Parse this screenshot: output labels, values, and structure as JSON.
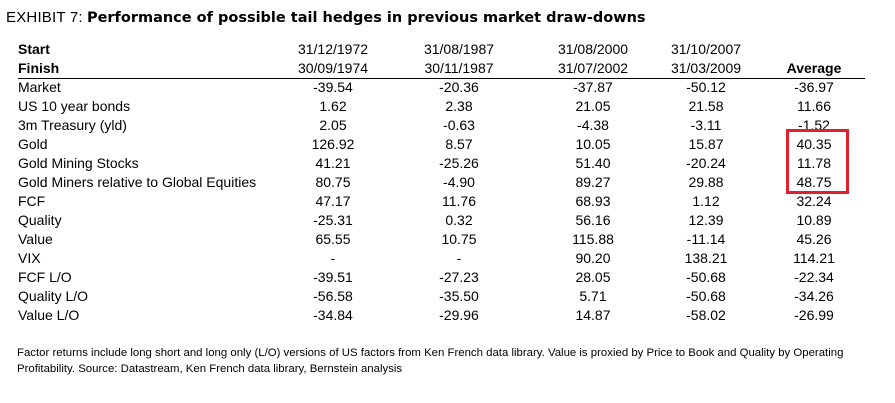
{
  "exhibit": {
    "label": "EXHIBIT 7:",
    "title": "Performance of possible tail hedges in previous market draw-downs"
  },
  "columns": [
    {
      "start": "31/12/1972",
      "finish": "30/09/1974"
    },
    {
      "start": "31/08/1987",
      "finish": "30/11/1987"
    },
    {
      "start": "31/08/2000",
      "finish": "31/07/2002"
    },
    {
      "start": "31/10/2007",
      "finish": "31/03/2009"
    }
  ],
  "header": {
    "start_label": "Start",
    "finish_label": "Finish",
    "average_label": "Average"
  },
  "rows": [
    {
      "label": "Market",
      "values": [
        "-39.54",
        "-20.36",
        "-37.87",
        "-50.12",
        "-36.97"
      ]
    },
    {
      "label": "US 10 year bonds",
      "values": [
        "1.62",
        "2.38",
        "21.05",
        "21.58",
        "11.66"
      ]
    },
    {
      "label": "3m Treasury (yld)",
      "values": [
        "2.05",
        "-0.63",
        "-4.38",
        "-3.11",
        "-1.52"
      ]
    },
    {
      "label": "Gold",
      "values": [
        "126.92",
        "8.57",
        "10.05",
        "15.87",
        "40.35"
      ]
    },
    {
      "label": "Gold Mining Stocks",
      "values": [
        "41.21",
        "-25.26",
        "51.40",
        "-20.24",
        "11.78"
      ]
    },
    {
      "label": "Gold Miners relative to Global Equities",
      "values": [
        "80.75",
        "-4.90",
        "89.27",
        "29.88",
        "48.75"
      ]
    },
    {
      "label": "FCF",
      "values": [
        "47.17",
        "11.76",
        "68.93",
        "1.12",
        "32.24"
      ]
    },
    {
      "label": "Quality",
      "values": [
        "-25.31",
        "0.32",
        "56.16",
        "12.39",
        "10.89"
      ]
    },
    {
      "label": "Value",
      "values": [
        "65.55",
        "10.75",
        "115.88",
        "-11.14",
        "45.26"
      ]
    },
    {
      "label": "VIX",
      "values": [
        "-",
        "-",
        "90.20",
        "138.21",
        "114.21"
      ]
    },
    {
      "label": "FCF L/O",
      "values": [
        "-39.51",
        "-27.23",
        "28.05",
        "-50.68",
        "-22.34"
      ]
    },
    {
      "label": "Quality L/O",
      "values": [
        "-56.58",
        "-35.50",
        "5.71",
        "-50.68",
        "-34.26"
      ]
    },
    {
      "label": "Value L/O",
      "values": [
        "-34.84",
        "-29.96",
        "14.87",
        "-58.02",
        "-26.99"
      ]
    }
  ],
  "highlight_color": "#e0202a",
  "footnote": "Factor returns include long short and long only (L/O) versions of US factors from Ken French data library. Value is proxied by Price to Book and Quality by Operating Profitability.  Source: Datastream, Ken French data library, Bernstein analysis"
}
